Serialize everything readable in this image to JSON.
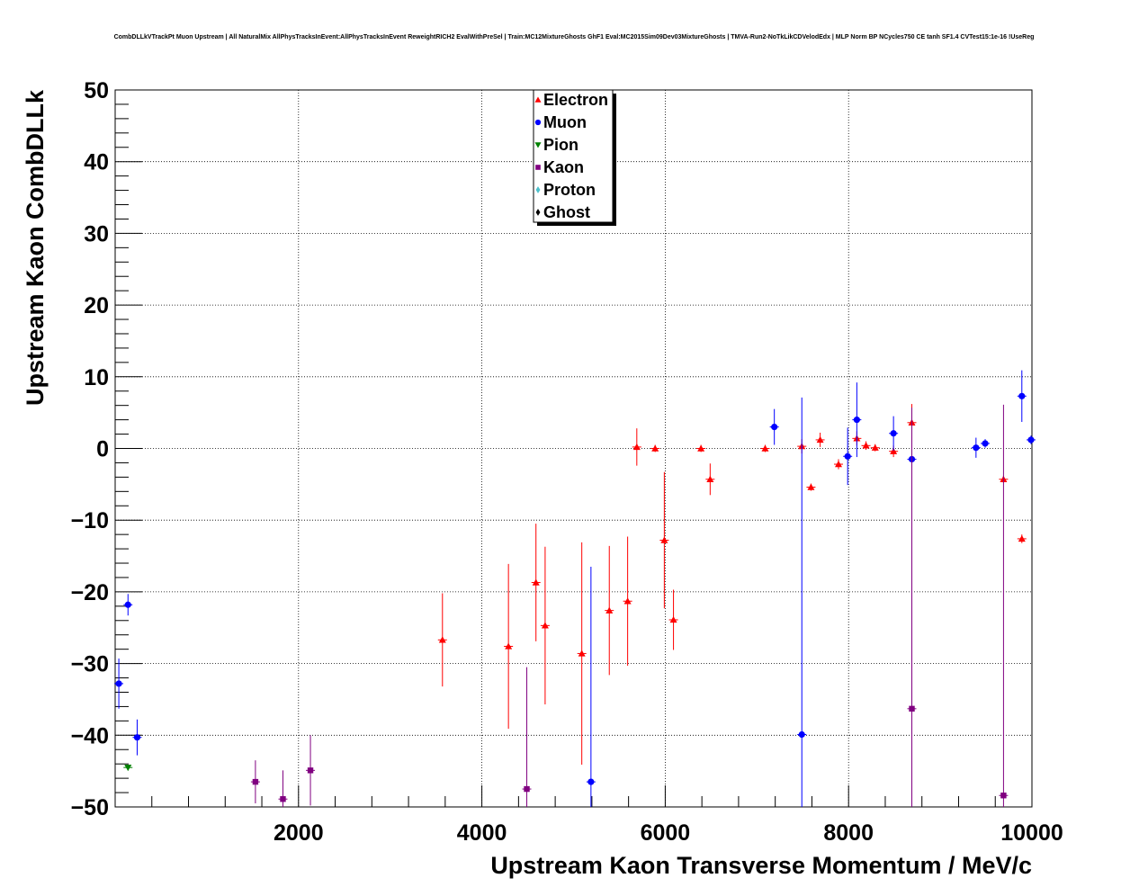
{
  "chart_data": {
    "type": "scatter",
    "title": "CombDLLkVTrackPt Muon Upstream | All NaturalMix AllPhysTracksInEvent:AllPhysTracksInEvent ReweightRICH2 EvalWithPreSel | Train:MC12MixtureGhosts GhF1 Eval:MC2015Sim09Dev03MixtureGhosts | TMVA-Run2-NoTkLikCDVelodEdx | MLP Norm BP NCycles750 CE tanh SF1.4 CVTest15:1e-16 !UseReg",
    "xlabel": "Upstream Kaon Transverse Momentum / MeV/c",
    "ylabel": "Upstream Kaon CombDLLk",
    "xlim": [
      0,
      10000
    ],
    "ylim": [
      -50,
      50
    ],
    "x_ticks": [
      2000,
      4000,
      6000,
      8000,
      10000
    ],
    "x_tick_labels": [
      "2000",
      "4000",
      "6000",
      "8000",
      "10000"
    ],
    "y_ticks": [
      -50,
      -40,
      -30,
      -20,
      -10,
      0,
      10,
      20,
      30,
      40,
      50
    ],
    "y_tick_labels": [
      "−50",
      "−40",
      "−30",
      "−20",
      "−10",
      "0",
      "10",
      "20",
      "30",
      "40",
      "50"
    ],
    "grid": true,
    "legend_position": "top-center",
    "series": [
      {
        "name": "Electron",
        "color": "#ff0000",
        "marker": "triangle-up",
        "points": [
          {
            "x": 3570,
            "y": -26.7,
            "ey": 6.5
          },
          {
            "x": 4290,
            "y": -27.6,
            "ey": 11.5
          },
          {
            "x": 4590,
            "y": -18.7,
            "ey": 8.2
          },
          {
            "x": 4690,
            "y": -24.7,
            "ey": 11.0
          },
          {
            "x": 5090,
            "y": -28.6,
            "ey": 15.5
          },
          {
            "x": 5390,
            "y": -22.6,
            "ey": 9.0
          },
          {
            "x": 5590,
            "y": -21.3,
            "ey": 9.0
          },
          {
            "x": 5690,
            "y": 0.2,
            "ey": 2.6
          },
          {
            "x": 5890,
            "y": 0.0,
            "ey": 0.5
          },
          {
            "x": 5990,
            "y": -12.8,
            "ey": 9.5
          },
          {
            "x": 6090,
            "y": -23.9,
            "ey": 4.2
          },
          {
            "x": 6390,
            "y": 0.0,
            "ey": 0.5
          },
          {
            "x": 6490,
            "y": -4.3,
            "ey": 2.2
          },
          {
            "x": 7090,
            "y": 0.0,
            "ey": 0.5
          },
          {
            "x": 7490,
            "y": 0.3,
            "ey": 1.0
          },
          {
            "x": 7590,
            "y": -5.4,
            "ey": 0.5
          },
          {
            "x": 7690,
            "y": 1.2,
            "ey": 1.0
          },
          {
            "x": 7890,
            "y": -2.2,
            "ey": 0.7
          },
          {
            "x": 8090,
            "y": 1.4,
            "ey": 1.0
          },
          {
            "x": 8190,
            "y": 0.4,
            "ey": 0.6
          },
          {
            "x": 8290,
            "y": 0.1,
            "ey": 0.5
          },
          {
            "x": 8490,
            "y": -0.4,
            "ey": 0.8
          },
          {
            "x": 8690,
            "y": 3.6,
            "ey": 2.6
          },
          {
            "x": 9690,
            "y": -4.3,
            "ey": 0.5
          },
          {
            "x": 9890,
            "y": -12.6,
            "ey": 0.6
          }
        ]
      },
      {
        "name": "Muon",
        "color": "#0000ff",
        "marker": "circle",
        "points": [
          {
            "x": 40,
            "y": -32.8,
            "ey": 3.5
          },
          {
            "x": 140,
            "y": -21.8,
            "ey": 1.5
          },
          {
            "x": 240,
            "y": -40.3,
            "ey": 2.5
          },
          {
            "x": 5190,
            "y": -46.5,
            "ey": 30.0
          },
          {
            "x": 7190,
            "y": 3.0,
            "ey": 2.5
          },
          {
            "x": 7490,
            "y": -39.9,
            "ey": 47.0
          },
          {
            "x": 7990,
            "y": -1.1,
            "ey": 4.0
          },
          {
            "x": 8090,
            "y": 4.0,
            "ey": 5.2
          },
          {
            "x": 8490,
            "y": 2.1,
            "ey": 2.4
          },
          {
            "x": 8690,
            "y": -1.5,
            "ey": 1.0
          },
          {
            "x": 9390,
            "y": 0.1,
            "ey": 1.4
          },
          {
            "x": 9490,
            "y": 0.7,
            "ey": 0.6
          },
          {
            "x": 9890,
            "y": 7.3,
            "ey": 3.6
          },
          {
            "x": 9990,
            "y": 1.2,
            "ey": 0.6
          }
        ]
      },
      {
        "name": "Pion",
        "color": "#008000",
        "marker": "triangle-down",
        "points": [
          {
            "x": 140,
            "y": -44.5,
            "ey": 0.4
          }
        ]
      },
      {
        "name": "Kaon",
        "color": "#800080",
        "marker": "square",
        "points": [
          {
            "x": 1530,
            "y": -46.5,
            "ey": 3.0
          },
          {
            "x": 1830,
            "y": -48.9,
            "ey": 4.0
          },
          {
            "x": 2130,
            "y": -44.9,
            "ey": 4.9
          },
          {
            "x": 4490,
            "y": -47.5,
            "ey": 17.0
          },
          {
            "x": 8690,
            "y": -36.3,
            "ey": 42.0
          },
          {
            "x": 9690,
            "y": -48.4,
            "ey": 54.5
          }
        ]
      },
      {
        "name": "Proton",
        "color": "#4dc1cc",
        "marker": "diamond",
        "points": []
      },
      {
        "name": "Ghost",
        "color": "#000000",
        "marker": "diamond",
        "points": []
      }
    ]
  }
}
